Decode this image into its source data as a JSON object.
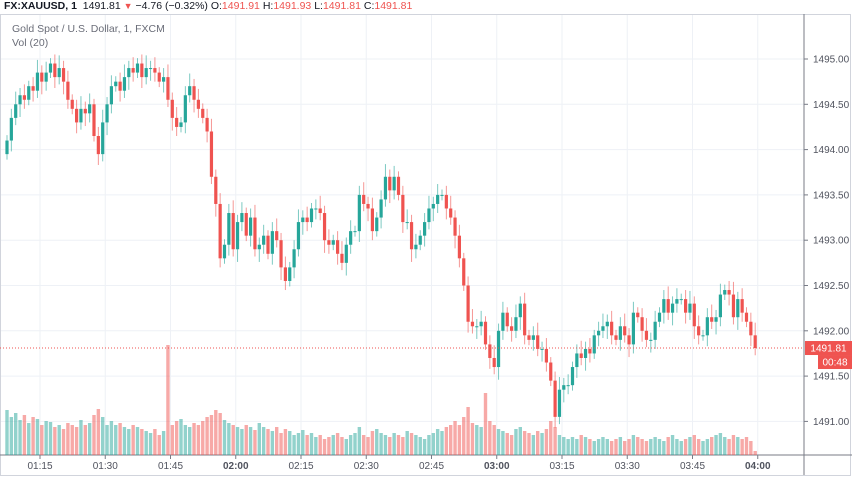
{
  "header": {
    "symbol": "FX:XAUUSD, 1",
    "last": "1491.81",
    "change_icon": "triangle-down-icon",
    "change": "−4.76 (−0.32%)",
    "o_label": "O:",
    "o": "1491.91",
    "h_label": "H:",
    "h": "1491.93",
    "l_label": "L:",
    "l": "1491.81",
    "c_label": "C:",
    "c": "1491.81"
  },
  "legend": {
    "title": "Gold Spot / U.S. Dollar, 1, FXCM",
    "volume": "Vol (20)"
  },
  "price_label": "1491.81",
  "countdown_label": "00:48",
  "chart_data": {
    "type": "candlestick",
    "title": "Gold Spot / U.S. Dollar, 1, FXCM",
    "colors": {
      "up": "#26a69a",
      "down": "#ef5350",
      "grid": "#eef1f6",
      "last_price": "#ef5350"
    },
    "ylim": [
      1490.6,
      1495.65
    ],
    "y_ticks": [
      "1495.00",
      "1494.50",
      "1494.00",
      "1493.50",
      "1493.00",
      "1492.50",
      "1492.00",
      "1491.50",
      "1491.00"
    ],
    "y_tick_values": [
      1495.0,
      1494.5,
      1494.0,
      1493.5,
      1493.0,
      1492.5,
      1492.0,
      1491.5,
      1491.0
    ],
    "x_ticks": [
      "01:15",
      "01:30",
      "01:45",
      "02:00",
      "02:15",
      "02:30",
      "02:45",
      "03:00",
      "03:15",
      "03:30",
      "03:45",
      "04:00"
    ],
    "x_ticks_bold": [
      "02:00",
      "03:00",
      "04:00"
    ],
    "start_time": "01:08",
    "interval_minutes": 1,
    "first_open": 1493.95,
    "last_price": 1491.81,
    "close": [
      1494.1,
      1494.35,
      1494.5,
      1494.6,
      1494.55,
      1494.7,
      1494.65,
      1494.85,
      1494.75,
      1494.85,
      1494.95,
      1494.8,
      1494.9,
      1494.75,
      1494.55,
      1494.45,
      1494.3,
      1494.45,
      1494.4,
      1494.5,
      1494.15,
      1493.95,
      1494.3,
      1494.5,
      1494.7,
      1494.75,
      1494.65,
      1494.8,
      1494.9,
      1494.85,
      1494.95,
      1494.8,
      1494.9,
      1494.9,
      1494.85,
      1494.75,
      1494.8,
      1494.55,
      1494.35,
      1494.25,
      1494.3,
      1494.6,
      1494.7,
      1494.55,
      1494.45,
      1494.35,
      1494.2,
      1493.7,
      1493.4,
      1492.8,
      1492.95,
      1493.3,
      1492.9,
      1493.2,
      1493.3,
      1493.05,
      1493.25,
      1492.9,
      1492.95,
      1493.05,
      1492.85,
      1493.1,
      1493.0,
      1492.7,
      1492.55,
      1492.7,
      1492.9,
      1493.2,
      1493.25,
      1493.2,
      1493.35,
      1493.35,
      1493.3,
      1493.0,
      1492.95,
      1493.0,
      1492.85,
      1492.75,
      1492.95,
      1493.1,
      1493.1,
      1493.5,
      1493.4,
      1493.35,
      1493.1,
      1493.25,
      1493.45,
      1493.7,
      1493.55,
      1493.7,
      1493.5,
      1493.2,
      1493.2,
      1492.9,
      1492.95,
      1493.05,
      1493.2,
      1493.35,
      1493.4,
      1493.5,
      1493.5,
      1493.35,
      1493.25,
      1493.05,
      1492.8,
      1492.5,
      1492.1,
      1492.05,
      1492.05,
      1492.1,
      1491.85,
      1491.7,
      1491.6,
      1492.0,
      1492.2,
      1492.05,
      1492.0,
      1492.15,
      1492.3,
      1491.95,
      1491.9,
      1491.95,
      1491.8,
      1491.8,
      1491.65,
      1491.45,
      1491.05,
      1491.35,
      1491.4,
      1491.4,
      1491.6,
      1491.75,
      1491.7,
      1491.8,
      1491.75,
      1491.95,
      1492.0,
      1492.05,
      1492.1,
      1491.95,
      1491.9,
      1492.05,
      1491.95,
      1491.85,
      1492.2,
      1492.15,
      1492.0,
      1491.9,
      1491.9,
      1492.1,
      1492.2,
      1492.35,
      1492.2,
      1492.3,
      1492.35,
      1492.35,
      1492.2,
      1492.3,
      1492.05,
      1491.95,
      1491.95,
      1492.15,
      1492.1,
      1492.15,
      1492.4,
      1492.45,
      1492.4,
      1492.15,
      1492.35,
      1492.2,
      1492.1,
      1491.95,
      1491.81
    ],
    "volume": [
      45,
      38,
      42,
      35,
      40,
      32,
      38,
      36,
      30,
      34,
      33,
      28,
      30,
      26,
      32,
      30,
      28,
      35,
      30,
      32,
      40,
      46,
      38,
      30,
      34,
      30,
      32,
      28,
      26,
      30,
      28,
      26,
      24,
      22,
      26,
      20,
      24,
      110,
      30,
      34,
      36,
      30,
      28,
      32,
      30,
      34,
      38,
      40,
      45,
      42,
      35,
      32,
      30,
      28,
      26,
      30,
      28,
      25,
      32,
      28,
      26,
      24,
      28,
      22,
      26,
      24,
      20,
      22,
      25,
      20,
      22,
      18,
      20,
      16,
      18,
      20,
      22,
      18,
      16,
      20,
      22,
      28,
      20,
      18,
      24,
      26,
      22,
      20,
      18,
      22,
      20,
      18,
      24,
      22,
      20,
      18,
      16,
      20,
      22,
      26,
      24,
      28,
      30,
      34,
      30,
      38,
      48,
      32,
      30,
      28,
      62,
      34,
      30,
      26,
      24,
      22,
      20,
      26,
      28,
      24,
      22,
      20,
      24,
      22,
      26,
      34,
      28,
      20,
      18,
      16,
      18,
      16,
      20,
      18,
      16,
      14,
      16,
      18,
      16,
      14,
      16,
      18,
      14,
      16,
      20,
      18,
      16,
      14,
      16,
      18,
      16,
      14,
      18,
      20,
      16,
      14,
      16,
      18,
      20,
      16,
      14,
      16,
      18,
      20,
      22,
      18,
      16,
      20,
      18,
      16,
      18,
      14,
      4
    ]
  }
}
